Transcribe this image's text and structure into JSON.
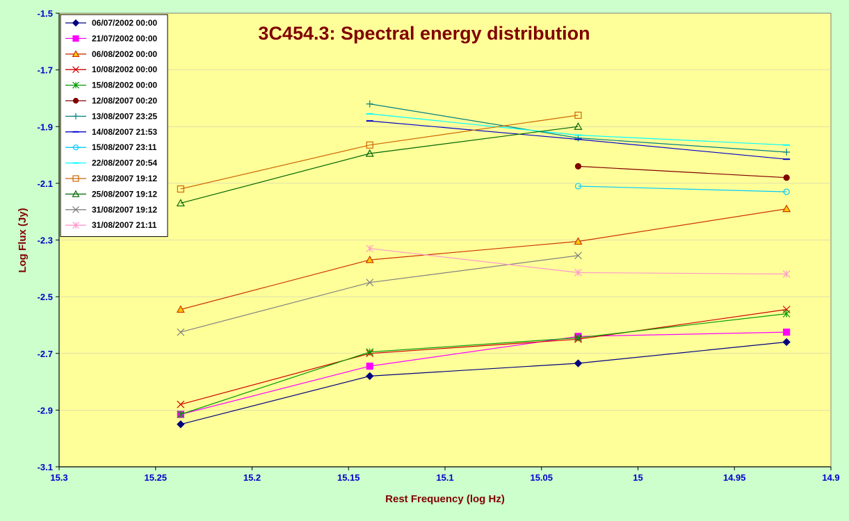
{
  "chart_data": {
    "type": "line",
    "title": "3C454.3: Spectral energy distribution",
    "xlabel": "Rest Frequency (log Hz)",
    "ylabel": "Log Flux (Jy)",
    "xlim": [
      15.3,
      14.9
    ],
    "ylim": [
      -3.1,
      -1.5
    ],
    "x_reversed": true,
    "xticks": [
      "15.3",
      "15.25",
      "15.2",
      "15.15",
      "15.1",
      "15.05",
      "15",
      "14.95",
      "14.9"
    ],
    "yticks": [
      "-1.5",
      "-1.7",
      "-1.9",
      "-2.1",
      "-2.3",
      "-2.5",
      "-2.7",
      "-2.9",
      "-3.1"
    ],
    "legend_position": "top-left",
    "plot_background": "#ffff99",
    "page_background": "#ccffcc",
    "series": [
      {
        "name": "06/07/2002 00:00",
        "color": "#000080",
        "marker": "diamond",
        "points": [
          [
            15.237,
            -2.95
          ],
          [
            15.139,
            -2.78
          ],
          [
            15.031,
            -2.735
          ],
          [
            14.923,
            -2.66
          ]
        ]
      },
      {
        "name": "21/07/2002 00:00",
        "color": "#ff00ff",
        "marker": "square",
        "points": [
          [
            15.237,
            -2.915
          ],
          [
            15.139,
            -2.745
          ],
          [
            15.031,
            -2.64
          ],
          [
            14.923,
            -2.625
          ]
        ]
      },
      {
        "name": "06/08/2002 00:00",
        "color": "#cc3300",
        "marker": "triangle",
        "markerFill": "#ffcc00",
        "points": [
          [
            15.237,
            -2.545
          ],
          [
            15.139,
            -2.37
          ],
          [
            15.031,
            -2.305
          ],
          [
            14.923,
            -2.19
          ]
        ]
      },
      {
        "name": "10/08/2002 00:00",
        "color": "#cc0000",
        "marker": "x",
        "points": [
          [
            15.237,
            -2.88
          ],
          [
            15.139,
            -2.7
          ],
          [
            15.031,
            -2.65
          ],
          [
            14.923,
            -2.545
          ]
        ]
      },
      {
        "name": "15/08/2002 00:00",
        "color": "#009900",
        "marker": "star",
        "points": [
          [
            15.237,
            -2.915
          ],
          [
            15.139,
            -2.695
          ],
          [
            15.031,
            -2.645
          ],
          [
            14.923,
            -2.56
          ]
        ]
      },
      {
        "name": "12/08/2007 00:20",
        "color": "#800000",
        "marker": "circle",
        "markerFill": "#800000",
        "points": [
          [
            15.031,
            -2.04
          ],
          [
            14.923,
            -2.08
          ]
        ]
      },
      {
        "name": "13/08/2007 23:25",
        "color": "#008080",
        "marker": "plus",
        "points": [
          [
            15.139,
            -1.82
          ],
          [
            15.031,
            -1.94
          ],
          [
            14.923,
            -1.99
          ]
        ]
      },
      {
        "name": "14/08/2007 21:53",
        "color": "#0000cc",
        "marker": "dash",
        "points": [
          [
            15.139,
            -1.88
          ],
          [
            15.031,
            -1.945
          ],
          [
            14.923,
            -2.015
          ]
        ]
      },
      {
        "name": "15/08/2007 23:11",
        "color": "#00ccff",
        "marker": "circle",
        "markerFill": "none",
        "points": [
          [
            15.031,
            -2.11
          ],
          [
            14.923,
            -2.13
          ]
        ]
      },
      {
        "name": "22/08/2007 20:54",
        "color": "#00ffff",
        "marker": "dash",
        "points": [
          [
            15.139,
            -1.855
          ],
          [
            15.031,
            -1.93
          ],
          [
            14.923,
            -1.965
          ]
        ]
      },
      {
        "name": "23/08/2007 19:12",
        "color": "#cc6600",
        "marker": "square",
        "markerFill": "none",
        "points": [
          [
            15.237,
            -2.12
          ],
          [
            15.139,
            -1.965
          ],
          [
            15.031,
            -1.86
          ]
        ]
      },
      {
        "name": "25/08/2007 19:12",
        "color": "#006600",
        "marker": "triangle",
        "markerFill": "none",
        "points": [
          [
            15.237,
            -2.17
          ],
          [
            15.139,
            -1.995
          ],
          [
            15.031,
            -1.9
          ]
        ]
      },
      {
        "name": "31/08/2007 19:12",
        "color": "#808080",
        "marker": "x",
        "points": [
          [
            15.237,
            -2.625
          ],
          [
            15.139,
            -2.45
          ],
          [
            15.031,
            -2.355
          ]
        ]
      },
      {
        "name": "31/08/2007 21:11",
        "color": "#ff99cc",
        "marker": "star",
        "points": [
          [
            15.139,
            -2.33
          ],
          [
            15.031,
            -2.415
          ],
          [
            14.923,
            -2.42
          ]
        ]
      }
    ]
  }
}
